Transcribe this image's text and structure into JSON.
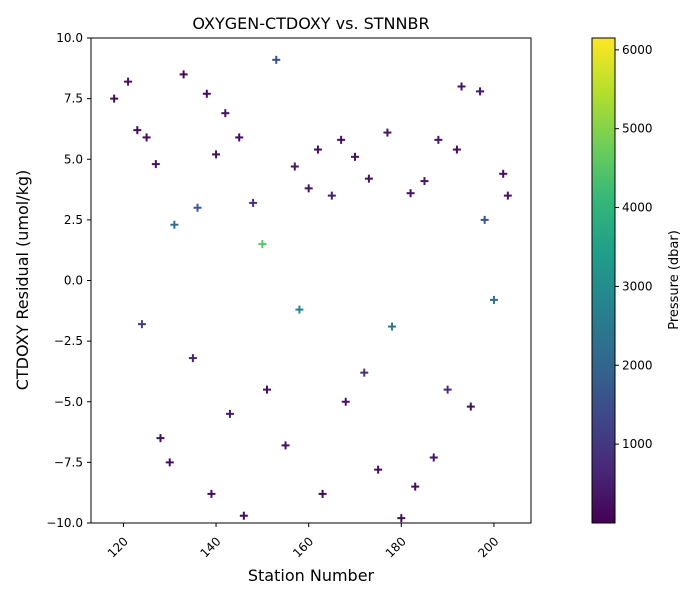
{
  "chart_data": {
    "type": "scatter",
    "title": "OXYGEN-CTDOXY vs. STNNBR",
    "xlabel": "Station Number",
    "ylabel": "CTDOXY Residual (umol/kg)",
    "xlim": [
      113,
      208
    ],
    "ylim": [
      -10.0,
      10.0
    ],
    "x_ticks": [
      120,
      140,
      160,
      180,
      200
    ],
    "y_ticks": [
      -10.0,
      -7.5,
      -5.0,
      -2.5,
      0.0,
      2.5,
      5.0,
      7.5,
      10.0
    ],
    "x_tick_labels": [
      "120",
      "140",
      "160",
      "180",
      "200"
    ],
    "y_tick_labels": [
      "−10.0",
      "−7.5",
      "−5.0",
      "−2.5",
      "0.0",
      "2.5",
      "5.0",
      "7.5",
      "10.0"
    ],
    "x_tick_rotation_deg": -45,
    "marker": "+",
    "grid": false,
    "colorbar": {
      "label": "Pressure (dbar)",
      "range": [
        0,
        6150
      ],
      "ticks": [
        1000,
        2000,
        3000,
        4000,
        5000,
        6000
      ],
      "tick_labels": [
        "1000",
        "2000",
        "3000",
        "4000",
        "5000",
        "6000"
      ],
      "colormap": "viridis"
    },
    "colormap_stops": [
      "#440154",
      "#482878",
      "#3e4989",
      "#31688e",
      "#26828e",
      "#1f9e89",
      "#35b779",
      "#6ece58",
      "#b5de2b",
      "#fde725"
    ],
    "series": [
      {
        "x": [
          118,
          121,
          123,
          124,
          125,
          127,
          128,
          130,
          131,
          133,
          135,
          136,
          138,
          139,
          140,
          142,
          143,
          145,
          146,
          148,
          150,
          151,
          153,
          155,
          157,
          158,
          160,
          162,
          163,
          165,
          167,
          168,
          170,
          172,
          173,
          175,
          177,
          178,
          180,
          182,
          183,
          185,
          187,
          188,
          190,
          192,
          193,
          195,
          197,
          198,
          200,
          202,
          203
        ],
        "y": [
          7.5,
          8.2,
          6.2,
          -1.8,
          5.9,
          4.8,
          -6.5,
          -7.5,
          2.3,
          8.5,
          -3.2,
          3.0,
          7.7,
          -8.8,
          5.2,
          6.9,
          -5.5,
          5.9,
          -9.7,
          3.2,
          1.5,
          -4.5,
          9.1,
          -6.8,
          4.7,
          -1.2,
          3.8,
          5.4,
          -8.8,
          3.5,
          5.8,
          -5.0,
          5.1,
          -3.8,
          4.2,
          -7.8,
          6.1,
          -1.9,
          -9.8,
          3.6,
          -8.5,
          4.1,
          -7.3,
          5.8,
          -4.5,
          5.4,
          8.0,
          -5.2,
          7.8,
          2.5,
          -0.8,
          4.4,
          3.5
        ],
        "pressure": [
          150,
          300,
          200,
          1200,
          150,
          300,
          200,
          250,
          2200,
          100,
          600,
          1800,
          200,
          150,
          250,
          300,
          500,
          200,
          150,
          900,
          4500,
          300,
          1500,
          200,
          400,
          2800,
          300,
          200,
          150,
          500,
          250,
          350,
          300,
          900,
          250,
          200,
          350,
          2500,
          150,
          300,
          200,
          400,
          300,
          350,
          700,
          200,
          300,
          250,
          350,
          1600,
          2200,
          200,
          300
        ]
      }
    ]
  }
}
